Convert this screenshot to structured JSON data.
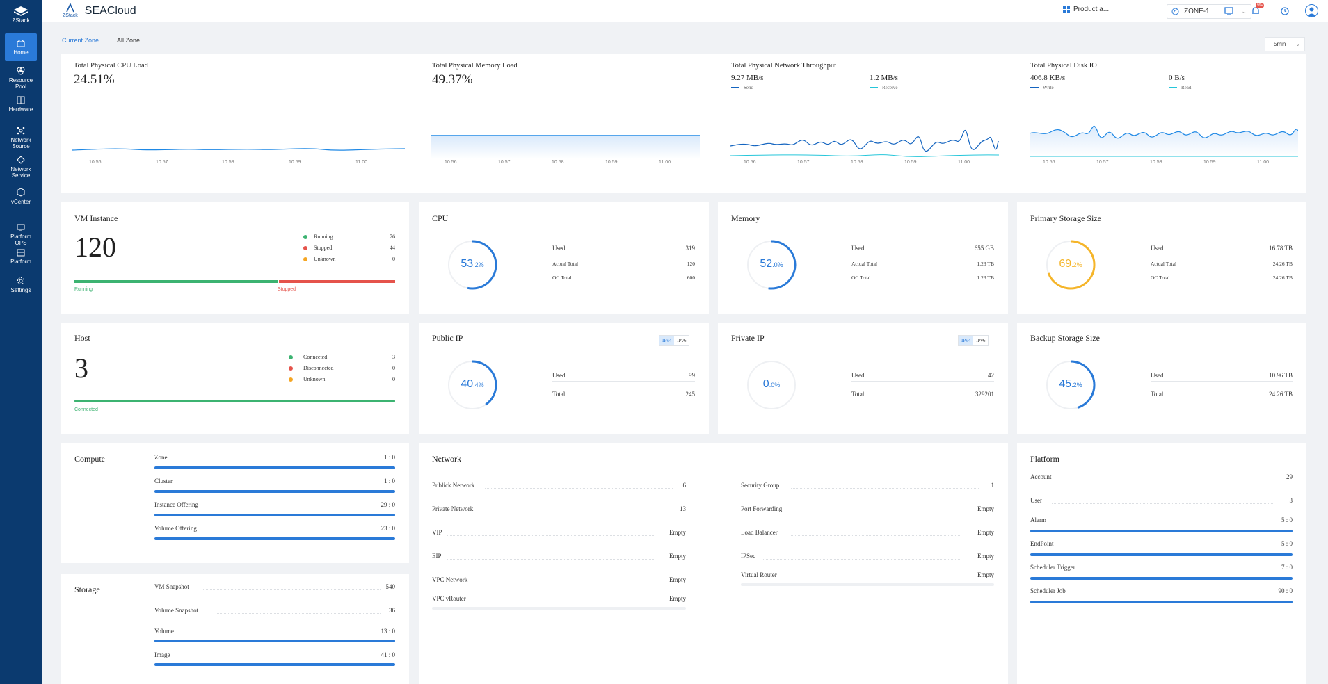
{
  "sidebar": {
    "logo_label": "ZStack",
    "items": [
      {
        "label": "Home",
        "icon": "home-icon",
        "active": true
      },
      {
        "label": "Resource Pool",
        "icon": "resource-pool-icon"
      },
      {
        "label": "Hardware",
        "icon": "hardware-icon"
      },
      {
        "label": "Network Source",
        "icon": "network-source-icon"
      },
      {
        "label": "Network Service",
        "icon": "network-service-icon"
      },
      {
        "label": "vCenter",
        "icon": "vcenter-icon"
      },
      {
        "label": "Platform OPS",
        "icon": "platform-ops-icon"
      },
      {
        "label": "Platform",
        "icon": "platform-icon"
      },
      {
        "label": "Settings",
        "icon": "settings-icon"
      }
    ]
  },
  "header": {
    "logo_text": "ZStack",
    "title": "SEACloud",
    "product_label": "Product a...",
    "zone": "ZONE-1",
    "notification_badge": "99+"
  },
  "tabs": [
    "Current Zone",
    "All Zone"
  ],
  "time_range": "5min",
  "monitors": [
    {
      "title": "Total Physical CPU Load",
      "value": "24.51%",
      "ticks": [
        "10:56",
        "10:57",
        "10:58",
        "10:59",
        "11:00"
      ]
    },
    {
      "title": "Total Physical Memory Load",
      "value": "49.37%",
      "ticks": [
        "10:56",
        "10:57",
        "10:58",
        "10:59",
        "11:00"
      ]
    },
    {
      "title": "Total Physical Network Throughput",
      "value1": "9.27 MB/s",
      "legend1": "Send",
      "value2": "1.2 MB/s",
      "legend2": "Receive",
      "ticks": [
        "10:56",
        "10:57",
        "10:58",
        "10:59",
        "11:00"
      ]
    },
    {
      "title": "Total Physical Disk IO",
      "value1": "406.8 KB/s",
      "legend1": "Write",
      "value2": "0 B/s",
      "legend2": "Read",
      "ticks": [
        "10:56",
        "10:57",
        "10:58",
        "10:59",
        "11:00"
      ]
    }
  ],
  "vm_instance": {
    "title": "VM Instance",
    "count": "120",
    "legend": [
      {
        "label": "Running",
        "value": "76",
        "color": "#3cb371"
      },
      {
        "label": "Stopped",
        "value": "44",
        "color": "#e5534b"
      },
      {
        "label": "Unknown",
        "value": "0",
        "color": "#f5a623"
      }
    ],
    "bar_left_label": "Running",
    "bar_right_label": "Stopped",
    "running_fraction": 0.6333
  },
  "host": {
    "title": "Host",
    "count": "3",
    "legend": [
      {
        "label": "Connected",
        "value": "3",
        "color": "#3cb371"
      },
      {
        "label": "Disconnected",
        "value": "0",
        "color": "#e5534b"
      },
      {
        "label": "Unknown",
        "value": "0",
        "color": "#f5a623"
      }
    ],
    "bar_label": "Connected",
    "connected_fraction": 1.0
  },
  "cpu": {
    "title": "CPU",
    "int": "53",
    "dec": ".2%",
    "percent": 53.2,
    "color": "#2a7ad8",
    "used_label": "Used",
    "used": "319",
    "actual_label": "Actual Total",
    "actual": "120",
    "oc_label": "OC Total",
    "oc": "600"
  },
  "memory": {
    "title": "Memory",
    "int": "52",
    "dec": ".0%",
    "percent": 52.0,
    "color": "#2a7ad8",
    "used_label": "Used",
    "used": "655 GB",
    "actual_label": "Actual Total",
    "actual": "1.23 TB",
    "oc_label": "OC Total",
    "oc": "1.23 TB"
  },
  "primary_storage": {
    "title": "Primary Storage Size",
    "int": "69",
    "dec": ".2%",
    "percent": 69.2,
    "color": "#f5b52a",
    "used_label": "Used",
    "used": "16.78 TB",
    "actual_label": "Actual Total",
    "actual": "24.26 TB",
    "oc_label": "OC Total",
    "oc": "24.26 TB"
  },
  "public_ip": {
    "title": "Public IP",
    "int": "40",
    "dec": ".4%",
    "percent": 40.4,
    "color": "#2a7ad8",
    "toggle": [
      "IPv4",
      "IPv6"
    ],
    "used_label": "Used",
    "used": "99",
    "total_label": "Total",
    "total": "245"
  },
  "private_ip": {
    "title": "Private IP",
    "int": "0",
    "dec": ".0%",
    "percent": 0.0,
    "color": "#2a7ad8",
    "toggle": [
      "IPv4",
      "IPv6"
    ],
    "used_label": "Used",
    "used": "42",
    "total_label": "Total",
    "total": "329201"
  },
  "backup_storage": {
    "title": "Backup Storage Size",
    "int": "45",
    "dec": ".2%",
    "percent": 45.2,
    "color": "#2a7ad8",
    "used_label": "Used",
    "used": "10.96 TB",
    "total_label": "Total",
    "total": "24.26 TB"
  },
  "compute": {
    "title": "Compute",
    "rows": [
      {
        "label": "Zone",
        "value": "1 : 0"
      },
      {
        "label": "Cluster",
        "value": "1 : 0"
      },
      {
        "label": "Instance Offering",
        "value": "29 : 0"
      },
      {
        "label": "Volume Offering",
        "value": "23 : 0"
      }
    ]
  },
  "storage": {
    "title": "Storage",
    "rows": [
      {
        "label": "VM Snapshot",
        "value": "540"
      },
      {
        "label": "Volume Snapshot",
        "value": "36"
      },
      {
        "label": "Volume",
        "value": "13 : 0"
      },
      {
        "label": "Image",
        "value": "41 : 0"
      }
    ]
  },
  "network": {
    "title": "Network",
    "left": [
      {
        "label": "Publick Network",
        "value": "6"
      },
      {
        "label": "Private Network",
        "value": "13"
      },
      {
        "label": "VIP",
        "value": "Empty"
      },
      {
        "label": "EIP",
        "value": "Empty"
      },
      {
        "label": "VPC Network",
        "value": "Empty"
      },
      {
        "label": "VPC vRouter",
        "value": "Empty"
      }
    ],
    "right": [
      {
        "label": "Security Group",
        "value": "1"
      },
      {
        "label": "Port Forwarding",
        "value": "Empty"
      },
      {
        "label": "Load Balancer",
        "value": "Empty"
      },
      {
        "label": "IPSec",
        "value": "Empty"
      },
      {
        "label": "Virtual Router",
        "value": "Empty"
      }
    ]
  },
  "platform": {
    "title": "Platform",
    "rows": [
      {
        "label": "Account",
        "value": "29"
      },
      {
        "label": "User",
        "value": "3"
      },
      {
        "label": "Alarm",
        "value": "5 : 0"
      },
      {
        "label": "EndPoint",
        "value": "5 : 0"
      },
      {
        "label": "Scheduler Trigger",
        "value": "7 : 0"
      },
      {
        "label": "Scheduler Job",
        "value": "90 : 0"
      }
    ]
  }
}
